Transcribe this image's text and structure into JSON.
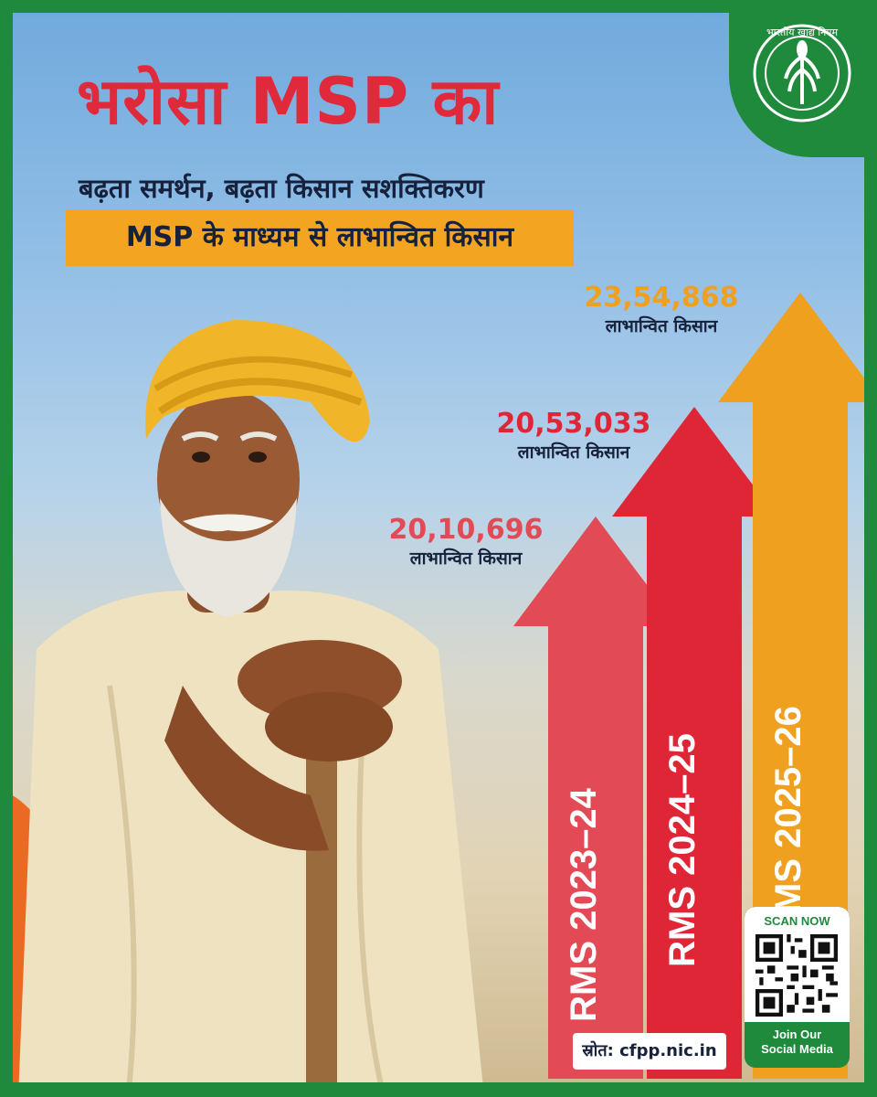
{
  "header": {
    "title": "भरोसा MSP का",
    "subtitle": "बढ़ता समर्थन, बढ़ता किसान सशक्तिकरण",
    "tagline": "MSP के माध्यम से लाभान्वित किसान"
  },
  "logo": {
    "text": "भारतीय खाद्य निगम",
    "icon": "wheat-emblem-icon"
  },
  "colors": {
    "green": "#1f8a3c",
    "red_title": "#e02a3c",
    "orange": "#f3a521",
    "arrow_2023": "#e24a55",
    "arrow_2024": "#df2637",
    "arrow_2025": "#f0a01f",
    "dark_text": "#17213b"
  },
  "chart_data": {
    "type": "bar",
    "categories": [
      "RMS 2023–24",
      "RMS 2024–25",
      "RMS 2025–26"
    ],
    "values": [
      2010696,
      2053033,
      2354868
    ],
    "value_labels": [
      "20,10,696",
      "20,53,033",
      "23,54,868"
    ],
    "value_caption": "लाभान्वित किसान",
    "orientation": "vertical-arrows"
  },
  "qr": {
    "scan_label": "SCAN NOW",
    "join_label_1": "Join Our",
    "join_label_2": "Social Media"
  },
  "source": {
    "text": "स्रोत: cfpp.nic.in"
  }
}
